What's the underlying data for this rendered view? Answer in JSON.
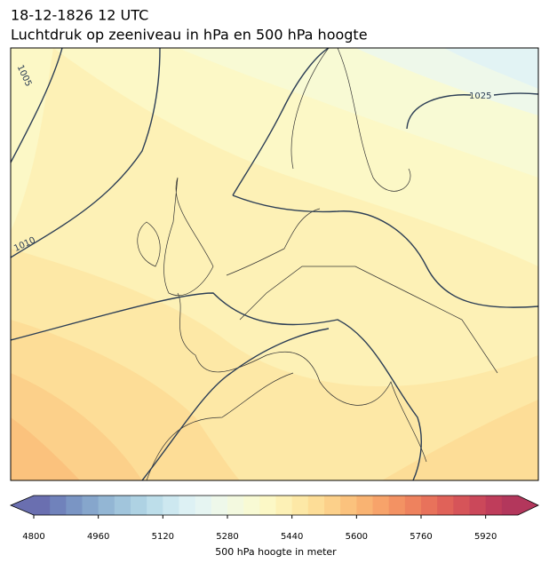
{
  "header": {
    "title": "18-12-1826 12 UTC",
    "subtitle": "Luchtdruk op zeeniveau in hPa en 500 hPa hoogte"
  },
  "map": {
    "isobar_labels": [
      {
        "label": "1005"
      },
      {
        "label": "1010"
      },
      {
        "label": "1025"
      }
    ]
  },
  "colorbar": {
    "label": "500 hPa hoogte in meter",
    "lim": [
      4800,
      6000
    ],
    "ticks": [
      4800,
      4960,
      5120,
      5280,
      5440,
      5600,
      5760,
      5920
    ],
    "colors": [
      "#6a6fb0",
      "#7082bb",
      "#7a95c4",
      "#86a6cc",
      "#93b6d4",
      "#a1c5dc",
      "#aed2e3",
      "#bddeea",
      "#cde8f0",
      "#ddf1f4",
      "#e6f5f2",
      "#eef8ea",
      "#f3f9df",
      "#f8fad4",
      "#fcf8c6",
      "#fdf1b6",
      "#fde8a6",
      "#fddd97",
      "#fcd08a",
      "#fbc27d",
      "#f9b372",
      "#f7a36a",
      "#f39263",
      "#ee825e",
      "#e8725b",
      "#e06259",
      "#d65459",
      "#cb485a",
      "#bf3d5b",
      "#b3375c"
    ]
  }
}
